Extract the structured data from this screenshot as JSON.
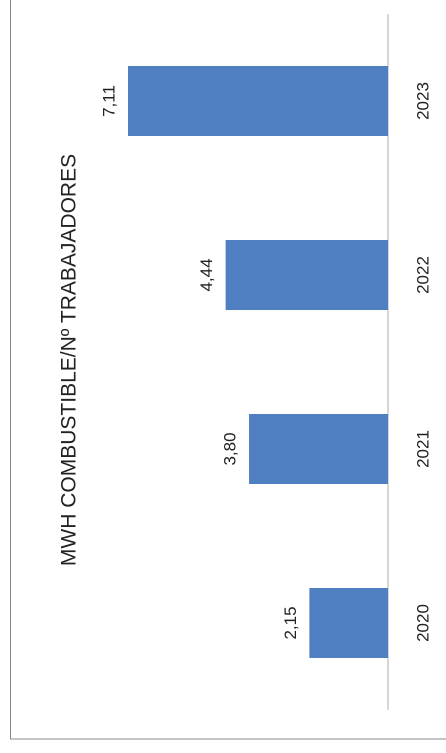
{
  "chart_data": {
    "type": "bar",
    "title": "MWH COMBUSTIBLE/Nº TRABAJADORES",
    "categories": [
      "2020",
      "2021",
      "2022",
      "2023"
    ],
    "values": [
      2.15,
      3.8,
      4.44,
      7.11
    ],
    "value_labels": [
      "2,15",
      "3,80",
      "4,44",
      "7,11"
    ],
    "color": "#4f7fc0"
  }
}
